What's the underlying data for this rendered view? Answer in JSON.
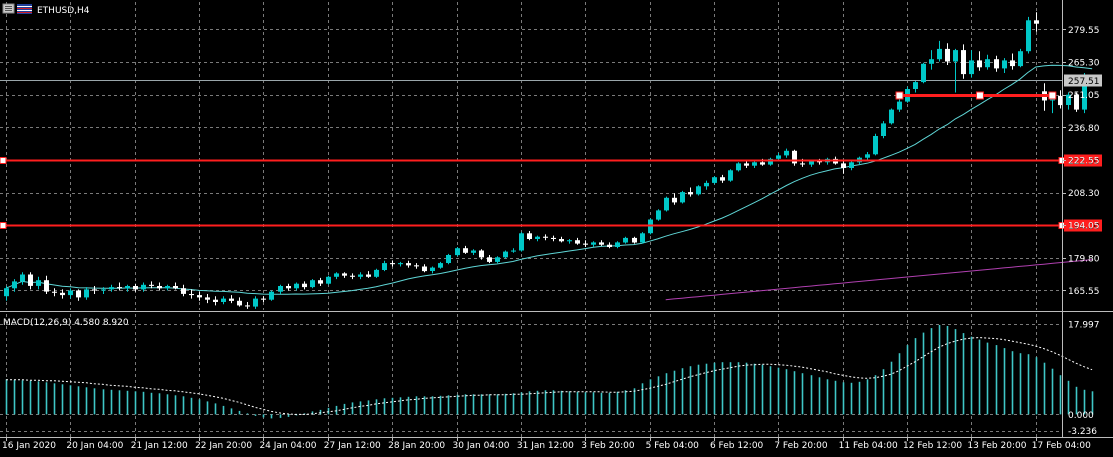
{
  "header": {
    "symbol_label": "ETHUSD,H4"
  },
  "colors": {
    "background": "#000000",
    "grid": "#7a7a7a",
    "bull": "#00c8c8",
    "bear": "#ffffff",
    "ma_fast": "#5fd6d6",
    "ma_slow": "#b040b0",
    "level": "#ff1e1e",
    "macd_hist": "#3fc6c6",
    "macd_signal": "#ffffff"
  },
  "chart_data": [
    {
      "type": "candlestick",
      "price_axis": {
        "ticks": [
          279.55,
          265.3,
          251.05,
          236.8,
          222.55,
          208.3,
          194.05,
          179.8,
          165.55
        ],
        "tick_labels": [
          "279.55",
          "265.30",
          "251.05",
          "236.80",
          "222.55",
          "208.30",
          "194.05",
          "179.80",
          "165.55"
        ],
        "ylim": [
          157,
          291.5
        ]
      },
      "time_axis": {
        "labels": [
          "16 Jan 2020",
          "20 Jan 04:00",
          "21 Jan 12:00",
          "22 Jan 20:00",
          "24 Jan 04:00",
          "27 Jan 12:00",
          "28 Jan 20:00",
          "30 Jan 04:00",
          "31 Jan 12:00",
          "3 Feb 20:00",
          "5 Feb 04:00",
          "6 Feb 12:00",
          "7 Feb 20:00",
          "11 Feb 04:00",
          "12 Feb 12:00",
          "13 Feb 20:00",
          "17 Feb 04:00"
        ],
        "label_bar_index": [
          0,
          8,
          16,
          24,
          32,
          40,
          48,
          56,
          64,
          72,
          80,
          88,
          96,
          104,
          112,
          120,
          128
        ]
      },
      "candles": [
        [
          163.0,
          167.5,
          161.0,
          166.5
        ],
        [
          166.5,
          170.5,
          165.0,
          169.5
        ],
        [
          169.5,
          173.5,
          168.0,
          172.5
        ],
        [
          172.5,
          173.5,
          166.0,
          167.5
        ],
        [
          167.5,
          171.5,
          166.0,
          170.0
        ],
        [
          170.0,
          172.0,
          164.0,
          165.0
        ],
        [
          165.0,
          166.5,
          163.0,
          164.5
        ],
        [
          164.5,
          166.0,
          162.0,
          163.5
        ],
        [
          163.5,
          166.5,
          162.0,
          165.5
        ],
        [
          165.5,
          166.0,
          161.0,
          162.5
        ],
        [
          162.5,
          167.0,
          161.5,
          166.0
        ],
        [
          166.0,
          167.5,
          164.0,
          165.5
        ],
        [
          165.5,
          167.0,
          164.0,
          166.0
        ],
        [
          166.0,
          168.0,
          165.0,
          167.0
        ],
        [
          167.0,
          169.0,
          165.5,
          166.5
        ],
        [
          166.5,
          168.0,
          165.0,
          167.5
        ],
        [
          167.5,
          168.5,
          165.0,
          166.0
        ],
        [
          166.0,
          169.0,
          165.0,
          168.0
        ],
        [
          168.0,
          169.5,
          166.5,
          167.5
        ],
        [
          167.5,
          169.0,
          165.5,
          166.5
        ],
        [
          166.5,
          168.0,
          165.5,
          167.5
        ],
        [
          167.5,
          169.0,
          166.0,
          166.5
        ],
        [
          166.5,
          168.0,
          163.0,
          164.0
        ],
        [
          164.0,
          166.0,
          162.0,
          163.5
        ],
        [
          163.5,
          165.0,
          161.0,
          162.5
        ],
        [
          162.5,
          164.0,
          160.0,
          161.5
        ],
        [
          161.5,
          163.0,
          159.0,
          160.5
        ],
        [
          160.5,
          163.0,
          159.5,
          162.0
        ],
        [
          162.0,
          163.5,
          160.0,
          161.0
        ],
        [
          161.0,
          162.5,
          158.5,
          159.0
        ],
        [
          159.0,
          160.5,
          157.5,
          158.5
        ],
        [
          158.5,
          163.0,
          157.5,
          162.0
        ],
        [
          162.0,
          163.0,
          160.5,
          161.5
        ],
        [
          161.5,
          165.5,
          161.0,
          165.0
        ],
        [
          165.0,
          168.0,
          164.0,
          167.5
        ],
        [
          167.5,
          168.5,
          165.5,
          166.5
        ],
        [
          166.5,
          169.0,
          165.5,
          168.5
        ],
        [
          168.5,
          169.5,
          166.0,
          167.0
        ],
        [
          167.0,
          170.5,
          166.5,
          170.0
        ],
        [
          170.0,
          171.0,
          167.5,
          168.5
        ],
        [
          168.5,
          172.0,
          168.0,
          171.5
        ],
        [
          171.5,
          173.5,
          170.5,
          173.0
        ],
        [
          173.0,
          173.5,
          171.0,
          172.0
        ],
        [
          172.0,
          173.0,
          170.5,
          171.5
        ],
        [
          171.5,
          173.5,
          170.5,
          172.5
        ],
        [
          172.5,
          174.0,
          171.0,
          171.5
        ],
        [
          171.5,
          175.0,
          171.0,
          174.5
        ],
        [
          174.5,
          178.5,
          174.0,
          177.5
        ],
        [
          177.5,
          178.5,
          176.0,
          177.0
        ],
        [
          177.0,
          178.0,
          176.0,
          177.5
        ],
        [
          177.5,
          178.5,
          175.5,
          176.5
        ],
        [
          176.5,
          177.5,
          175.0,
          176.0
        ],
        [
          176.0,
          177.0,
          173.5,
          174.0
        ],
        [
          174.0,
          176.0,
          173.0,
          175.5
        ],
        [
          175.5,
          178.0,
          175.0,
          177.5
        ],
        [
          177.5,
          181.5,
          177.0,
          181.0
        ],
        [
          181.0,
          184.5,
          180.5,
          184.0
        ],
        [
          184.0,
          185.0,
          181.5,
          182.0
        ],
        [
          182.0,
          183.5,
          181.0,
          183.0
        ],
        [
          183.0,
          183.5,
          179.0,
          180.0
        ],
        [
          180.0,
          181.0,
          177.5,
          178.0
        ],
        [
          178.0,
          180.5,
          177.5,
          180.0
        ],
        [
          180.0,
          183.0,
          179.5,
          182.5
        ],
        [
          182.5,
          184.0,
          182.0,
          183.0
        ],
        [
          183.0,
          191.0,
          182.5,
          190.5
        ],
        [
          190.5,
          191.5,
          187.5,
          188.0
        ],
        [
          188.0,
          189.5,
          187.0,
          189.0
        ],
        [
          189.0,
          190.0,
          187.5,
          188.5
        ],
        [
          188.5,
          189.5,
          187.0,
          188.0
        ],
        [
          188.0,
          189.0,
          186.5,
          187.0
        ],
        [
          187.0,
          188.0,
          186.0,
          187.5
        ],
        [
          187.5,
          188.5,
          185.5,
          186.0
        ],
        [
          186.0,
          187.5,
          184.5,
          185.5
        ],
        [
          185.5,
          187.0,
          184.5,
          186.5
        ],
        [
          186.5,
          187.5,
          185.0,
          185.5
        ],
        [
          185.5,
          186.5,
          184.0,
          184.5
        ],
        [
          184.5,
          187.0,
          184.0,
          186.5
        ],
        [
          186.5,
          189.0,
          186.0,
          188.5
        ],
        [
          188.5,
          189.0,
          186.0,
          186.5
        ],
        [
          186.5,
          191.0,
          186.0,
          190.5
        ],
        [
          190.5,
          197.0,
          190.0,
          196.5
        ],
        [
          196.5,
          201.0,
          196.0,
          200.5
        ],
        [
          200.5,
          206.5,
          200.0,
          206.0
        ],
        [
          206.0,
          208.0,
          203.0,
          204.0
        ],
        [
          204.0,
          209.0,
          203.5,
          208.5
        ],
        [
          208.5,
          210.5,
          206.5,
          207.5
        ],
        [
          207.5,
          211.5,
          207.0,
          211.0
        ],
        [
          211.0,
          213.5,
          209.5,
          212.5
        ],
        [
          212.5,
          215.5,
          212.0,
          215.0
        ],
        [
          215.0,
          216.0,
          212.5,
          213.5
        ],
        [
          213.5,
          218.5,
          213.0,
          218.0
        ],
        [
          218.0,
          221.5,
          217.5,
          221.0
        ],
        [
          221.0,
          222.5,
          219.0,
          220.0
        ],
        [
          220.0,
          222.0,
          219.0,
          221.5
        ],
        [
          221.5,
          223.0,
          220.0,
          220.5
        ],
        [
          220.5,
          223.5,
          220.0,
          223.0
        ],
        [
          223.0,
          225.5,
          222.5,
          224.5
        ],
        [
          224.5,
          227.5,
          223.5,
          226.5
        ],
        [
          226.5,
          227.0,
          220.0,
          221.0
        ],
        [
          221.0,
          223.0,
          219.5,
          220.5
        ],
        [
          220.5,
          222.5,
          219.5,
          222.0
        ],
        [
          222.0,
          223.0,
          220.5,
          221.5
        ],
        [
          221.5,
          223.5,
          220.5,
          223.0
        ],
        [
          223.0,
          224.0,
          220.5,
          221.0
        ],
        [
          221.0,
          222.0,
          216.5,
          219.0
        ],
        [
          219.0,
          222.0,
          218.0,
          221.5
        ],
        [
          221.5,
          224.0,
          220.5,
          223.5
        ],
        [
          223.5,
          226.0,
          222.5,
          225.0
        ],
        [
          225.0,
          234.0,
          224.5,
          233.0
        ],
        [
          233.0,
          239.5,
          232.0,
          238.5
        ],
        [
          238.5,
          245.0,
          238.0,
          244.5
        ],
        [
          244.5,
          249.0,
          243.5,
          248.0
        ],
        [
          248.0,
          254.5,
          247.5,
          253.5
        ],
        [
          253.5,
          257.0,
          252.0,
          256.5
        ],
        [
          256.5,
          265.0,
          256.0,
          264.5
        ],
        [
          264.5,
          270.5,
          262.0,
          266.5
        ],
        [
          266.5,
          274.5,
          265.5,
          271.0
        ],
        [
          271.0,
          273.5,
          264.0,
          265.5
        ],
        [
          265.5,
          271.0,
          252.0,
          270.5
        ],
        [
          270.5,
          273.0,
          258.0,
          260.0
        ],
        [
          260.0,
          270.5,
          258.5,
          266.0
        ],
        [
          266.0,
          270.0,
          261.5,
          263.0
        ],
        [
          263.0,
          268.5,
          262.0,
          266.5
        ],
        [
          266.5,
          268.0,
          261.0,
          262.5
        ],
        [
          262.5,
          267.0,
          260.5,
          266.0
        ],
        [
          266.0,
          269.0,
          262.0,
          263.5
        ],
        [
          263.5,
          271.0,
          263.0,
          270.0
        ],
        [
          270.0,
          285.0,
          269.0,
          283.5
        ],
        [
          283.5,
          287.0,
          278.5,
          282.0
        ],
        [
          252.5,
          256.0,
          244.0,
          248.5
        ],
        [
          248.5,
          252.0,
          243.0,
          250.5
        ],
        [
          250.5,
          253.0,
          245.0,
          246.5
        ],
        [
          246.5,
          252.0,
          244.5,
          251.0
        ],
        [
          251.0,
          252.0,
          243.5,
          244.5
        ],
        [
          244.5,
          260.5,
          243.0,
          258.0
        ],
        [
          258.0,
          258.5,
          257.0,
          257.51
        ]
      ],
      "levels": [
        {
          "price": 222.5,
          "label": "222.50"
        },
        {
          "price": 194.0,
          "label": "194.00"
        }
      ],
      "segment_level": {
        "price": 251.05,
        "from_bar": 111,
        "to_bar": 130
      },
      "current_price": {
        "value": 257.51,
        "label": "257.51"
      },
      "ma_fast_period": 20,
      "ma_slow": {
        "from": 161.5,
        "to": 179.0,
        "start_bar": 82
      }
    },
    {
      "type": "bar",
      "indicator_label": "MACD(12,26,9) 4.580 8.920",
      "ticks": [
        17.997,
        0.0,
        -3.236
      ],
      "tick_labels": [
        "17.997",
        "0.000",
        "-3.236"
      ],
      "ylim": [
        -4.5,
        20.0
      ],
      "histogram": [
        7.0,
        6.9,
        6.8,
        6.7,
        6.6,
        6.4,
        6.2,
        6.0,
        5.8,
        5.6,
        5.4,
        5.2,
        5.0,
        4.9,
        4.8,
        4.7,
        4.6,
        4.5,
        4.3,
        4.2,
        4.0,
        3.8,
        3.6,
        3.3,
        3.0,
        2.6,
        2.2,
        1.7,
        1.2,
        0.7,
        0.2,
        -0.3,
        -0.6,
        -0.8,
        -0.7,
        -0.5,
        -0.2,
        0.2,
        0.6,
        0.9,
        1.3,
        1.7,
        2.1,
        2.4,
        2.6,
        2.8,
        3.0,
        3.2,
        3.3,
        3.4,
        3.5,
        3.6,
        3.6,
        3.6,
        3.7,
        3.8,
        3.9,
        4.0,
        4.0,
        4.0,
        4.0,
        4.0,
        4.1,
        4.2,
        4.4,
        4.6,
        4.7,
        4.8,
        4.8,
        4.7,
        4.6,
        4.5,
        4.4,
        4.4,
        4.3,
        4.3,
        4.5,
        4.8,
        5.2,
        6.2,
        7.0,
        7.6,
        8.2,
        8.7,
        9.2,
        9.6,
        9.9,
        10.1,
        10.3,
        10.4,
        10.4,
        10.4,
        10.3,
        10.1,
        9.9,
        9.6,
        9.3,
        9.0,
        8.6,
        8.2,
        7.8,
        7.4,
        7.0,
        6.7,
        6.4,
        6.3,
        6.5,
        7.0,
        7.8,
        9.0,
        10.5,
        12.2,
        13.8,
        15.2,
        16.3,
        17.2,
        17.8,
        17.6,
        17.0,
        16.2,
        15.5,
        14.9,
        14.3,
        13.8,
        13.2,
        12.6,
        12.2,
        12.0,
        11.4,
        10.3,
        9.1,
        7.8,
        6.7,
        5.5,
        4.9,
        4.6
      ],
      "signal": [
        6.9,
        6.9,
        6.9,
        6.8,
        6.8,
        6.7,
        6.7,
        6.6,
        6.5,
        6.4,
        6.3,
        6.1,
        6.0,
        5.8,
        5.7,
        5.6,
        5.4,
        5.3,
        5.1,
        5.0,
        4.8,
        4.7,
        4.5,
        4.3,
        4.1,
        3.8,
        3.5,
        3.2,
        2.8,
        2.4,
        1.9,
        1.4,
        1.0,
        0.6,
        0.3,
        0.1,
        0.0,
        0.0,
        0.1,
        0.3,
        0.5,
        0.7,
        1.0,
        1.3,
        1.6,
        1.8,
        2.1,
        2.3,
        2.5,
        2.7,
        2.9,
        3.0,
        3.2,
        3.3,
        3.4,
        3.5,
        3.6,
        3.7,
        3.8,
        3.8,
        3.9,
        3.9,
        3.9,
        4.0,
        4.0,
        4.1,
        4.2,
        4.3,
        4.4,
        4.5,
        4.5,
        4.5,
        4.5,
        4.5,
        4.5,
        4.4,
        4.4,
        4.5,
        4.6,
        4.9,
        5.2,
        5.6,
        6.0,
        6.5,
        7.0,
        7.5,
        7.9,
        8.3,
        8.7,
        9.0,
        9.3,
        9.6,
        9.8,
        9.9,
        10.0,
        10.0,
        9.9,
        9.8,
        9.6,
        9.4,
        9.1,
        8.8,
        8.5,
        8.1,
        7.8,
        7.5,
        7.3,
        7.2,
        7.3,
        7.6,
        8.0,
        8.7,
        9.6,
        10.5,
        11.5,
        12.5,
        13.4,
        14.1,
        14.6,
        15.0,
        15.2,
        15.3,
        15.2,
        15.1,
        14.9,
        14.6,
        14.3,
        14.0,
        13.6,
        13.1,
        12.5,
        11.8,
        11.0,
        10.2,
        9.5,
        8.9
      ]
    }
  ]
}
